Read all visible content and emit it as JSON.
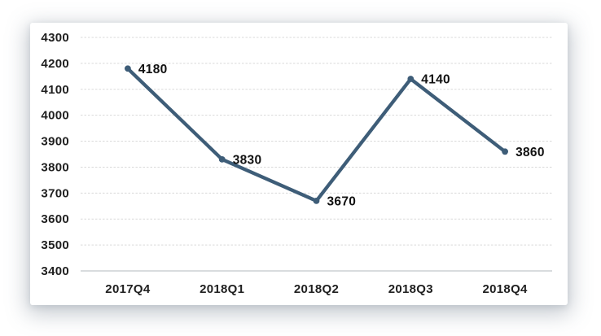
{
  "page": {
    "background_color": "#ffffff",
    "card_background_color": "#ffffff"
  },
  "chart_data": {
    "type": "line",
    "title": "",
    "xlabel": "",
    "ylabel": "",
    "categories": [
      "2017Q4",
      "2018Q1",
      "2018Q2",
      "2018Q3",
      "2018Q4"
    ],
    "values": [
      4180,
      3830,
      3670,
      4140,
      3860
    ],
    "yticks": [
      3400,
      3500,
      3600,
      3700,
      3800,
      3900,
      4000,
      4100,
      4200,
      4300
    ],
    "ylim": [
      3400,
      4300
    ],
    "grid": "horizontal-dashed",
    "legend": "none",
    "marker": "circle",
    "data_labels_shown": true,
    "line_color": "#3e5d78",
    "marker_color": "#3e5d78",
    "label_color": "#111111",
    "tick_label_color": "#1f1f1f",
    "gridline_color": "#d9d9d9",
    "axis_line_color": "#c2c6ca"
  }
}
